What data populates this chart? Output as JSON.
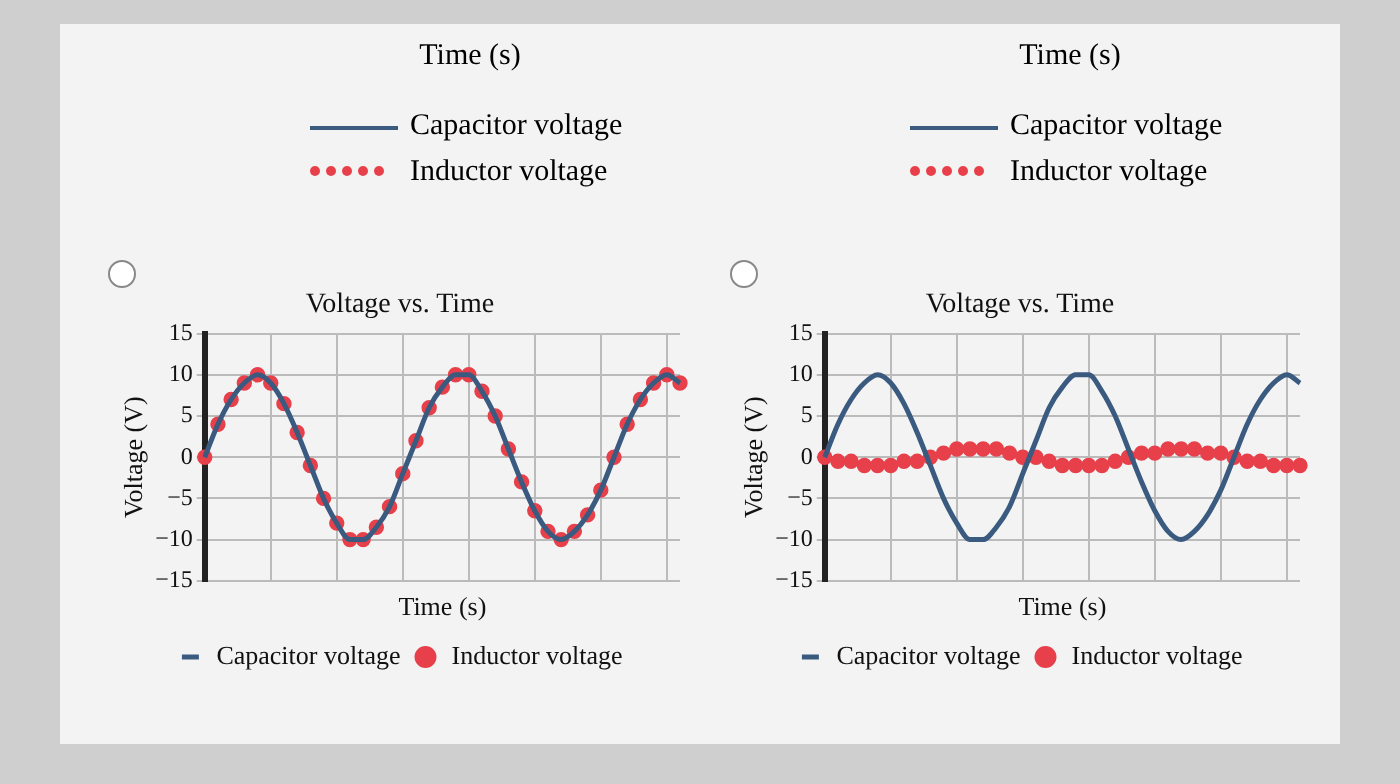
{
  "chart_data": [
    {
      "type": "other",
      "xlabel": "Time (s)",
      "annotations": [
        "Capacitor voltage",
        "Inductor voltage"
      ]
    },
    {
      "type": "other",
      "xlabel": "Time (s)",
      "annotations": [
        "Capacitor voltage",
        "Inductor voltage"
      ]
    },
    {
      "type": "line",
      "title": "Voltage vs. Time",
      "xlabel": "Time (s)",
      "ylabel": "Voltage (V)",
      "categories": [
        null,
        null,
        null,
        null,
        null,
        null,
        null,
        null,
        null,
        null,
        null,
        null,
        null,
        null,
        null,
        null,
        null,
        null,
        null,
        null,
        null,
        null,
        null,
        null,
        null,
        null,
        null,
        null,
        null,
        null,
        null,
        null,
        null,
        null,
        null,
        null,
        null
      ],
      "ylim": [
        -15,
        15
      ],
      "yticks": [
        -15,
        -10,
        -5,
        0,
        5,
        10,
        15
      ],
      "grid": true,
      "legend": "bottom",
      "series": [
        {
          "name": "Capacitor voltage",
          "color": "#3a5a80",
          "line_style": "solid",
          "marker": "none",
          "values": [
            0,
            4,
            7,
            9,
            10,
            9,
            6.5,
            3,
            -1,
            -5,
            -8,
            -10,
            -10,
            -8.5,
            -6,
            -2,
            2,
            6,
            8.5,
            10,
            10,
            8,
            5,
            1,
            -3,
            -6.5,
            -9,
            -10,
            -9,
            -7,
            -4,
            0,
            4,
            7,
            9,
            10,
            9
          ]
        },
        {
          "name": "Inductor voltage",
          "type": "scatter",
          "color": "#e8404a",
          "marker": "circle",
          "values": [
            0,
            4,
            7,
            9,
            10,
            9,
            6.5,
            3,
            -1,
            -5,
            -8,
            -10,
            -10,
            -8.5,
            -6,
            -2,
            2,
            6,
            8.5,
            10,
            10,
            8,
            5,
            1,
            -3,
            -6.5,
            -9,
            -10,
            -9,
            -7,
            -4,
            0,
            4,
            7,
            9,
            10,
            9
          ]
        }
      ]
    },
    {
      "type": "line",
      "title": "Voltage vs. Time",
      "xlabel": "Time (s)",
      "ylabel": "Voltage (V)",
      "categories": [
        null,
        null,
        null,
        null,
        null,
        null,
        null,
        null,
        null,
        null,
        null,
        null,
        null,
        null,
        null,
        null,
        null,
        null,
        null,
        null,
        null,
        null,
        null,
        null,
        null,
        null,
        null,
        null,
        null,
        null,
        null,
        null,
        null,
        null,
        null,
        null,
        null
      ],
      "ylim": [
        -15,
        15
      ],
      "yticks": [
        -15,
        -10,
        -5,
        0,
        5,
        10,
        15
      ],
      "grid": true,
      "legend": "bottom",
      "series": [
        {
          "name": "Capacitor voltage",
          "color": "#3a5a80",
          "line_style": "solid",
          "marker": "none",
          "values": [
            0,
            4,
            7,
            9,
            10,
            9,
            6.5,
            3,
            -1,
            -5,
            -8,
            -10,
            -10,
            -8.5,
            -6,
            -2,
            2,
            6,
            8.5,
            10,
            10,
            8,
            5,
            1,
            -3,
            -6.5,
            -9,
            -10,
            -9,
            -7,
            -4,
            0,
            4,
            7,
            9,
            10,
            9
          ]
        },
        {
          "name": "Inductor voltage",
          "type": "scatter",
          "color": "#e8404a",
          "marker": "circle",
          "values": [
            0,
            -0.5,
            -0.5,
            -1,
            -1,
            -1,
            -0.5,
            -0.5,
            0,
            0.5,
            1,
            1,
            1,
            1,
            0.5,
            0,
            0,
            -0.5,
            -1,
            -1,
            -1,
            -1,
            -0.5,
            0,
            0.5,
            0.5,
            1,
            1,
            1,
            0.5,
            0.5,
            0,
            -0.5,
            -0.5,
            -1,
            -1,
            -1
          ]
        }
      ]
    }
  ]
}
